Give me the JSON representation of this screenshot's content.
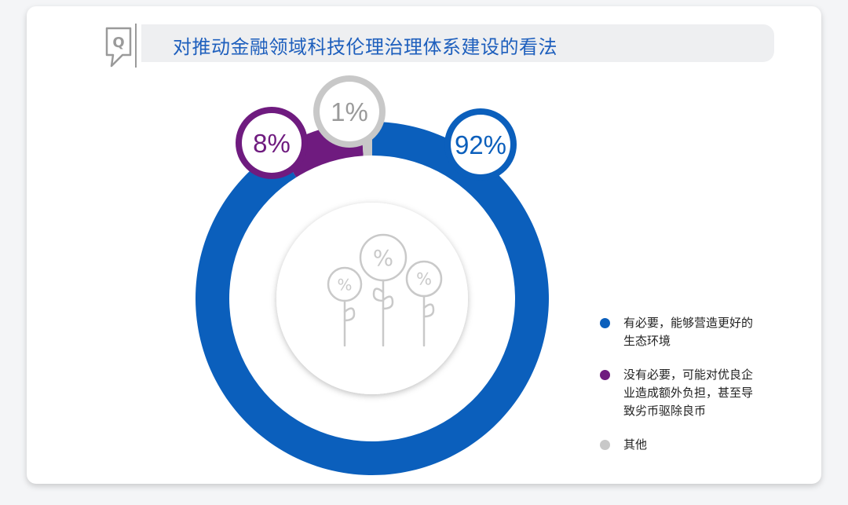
{
  "title": "对推动金融领域科技伦理治理体系建设的看法",
  "colors": {
    "blue": "#0b5fbc",
    "purple": "#6f1b7f",
    "gray": "#c8c8c8"
  },
  "icons": {
    "header": "question-bubble-icon",
    "center": "percent-flowers-icon"
  },
  "chart_data": {
    "type": "pie",
    "title": "对推动金融领域科技伦理治理体系建设的看法",
    "categories": [
      "有必要，能够营造更好的生态环境",
      "没有必要，可能对优良企业造成额外负担，甚至导致劣币驱除良币",
      "其他"
    ],
    "values": [
      92,
      8,
      1
    ],
    "labels": [
      "92%",
      "8%",
      "1%"
    ],
    "colors": [
      "#0b5fbc",
      "#6f1b7f",
      "#c8c8c8"
    ],
    "legend": "right"
  },
  "legend": [
    {
      "lines": [
        "有必要，能够营造更好的",
        "生态环境"
      ],
      "color": "#0b5fbc"
    },
    {
      "lines": [
        "没有必要，可能对优良企",
        "业造成额外负担，甚至导",
        "致劣币驱除良币"
      ],
      "color": "#6f1b7f"
    },
    {
      "lines": [
        "其他"
      ],
      "color": "#c8c8c8"
    }
  ]
}
